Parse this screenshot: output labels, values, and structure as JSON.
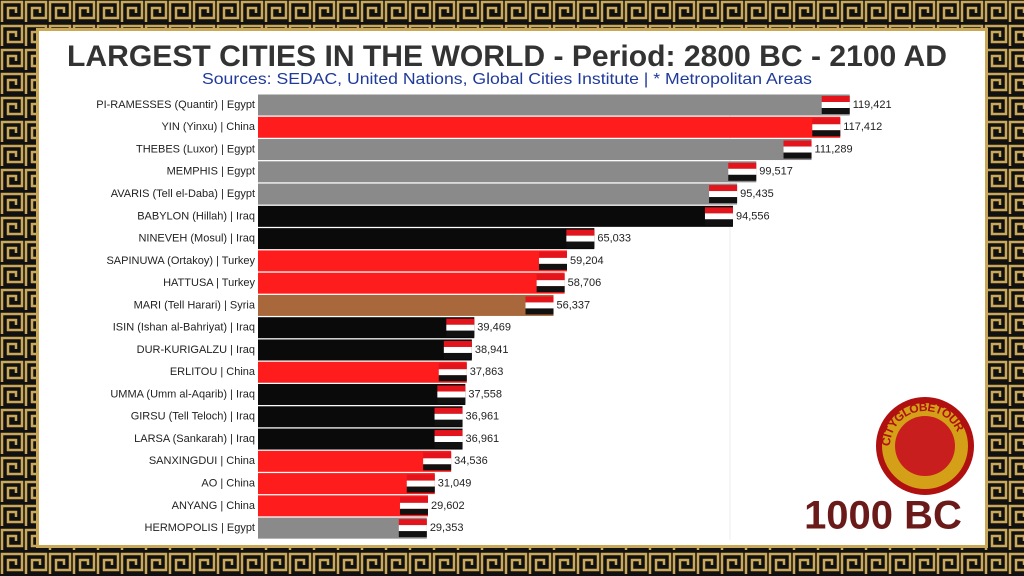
{
  "chart_data": {
    "type": "barh",
    "title": "LARGEST CITIES IN THE WORLD - Period: 2800 BC - 2100 AD",
    "subtitle": "Sources: SEDAC, United Nations, Global Cities Institute | * Metropolitan Areas",
    "period_label": "1000 BC",
    "logo": "CITYGLOBETOUR",
    "categories": [
      "PI-RAMESSES (Quantir) | Egypt",
      "YIN (Yinxu) | China",
      "THEBES (Luxor) | Egypt",
      "MEMPHIS | Egypt",
      "AVARIS (Tell el-Daba) | Egypt",
      "BABYLON (Hillah) | Iraq",
      "NINEVEH (Mosul) | Iraq",
      "SAPINUWA (Ortakoy) | Turkey",
      "HATTUSA | Turkey",
      "MARI (Tell Harari) | Syria",
      "ISIN (Ishan al-Bahriyat) | Iraq",
      "DUR-KURIGALZU | Iraq",
      "ERLITOU | China",
      "UMMA (Umm al-Aqarib) | Iraq",
      "GIRSU (Tell Teloch) | Iraq",
      "LARSA (Sankarah) | Iraq",
      "SANXINGDUI | China",
      "AO | China",
      "ANYANG | China",
      "HERMOPOLIS | Egypt"
    ],
    "values": [
      119421,
      117412,
      111289,
      99517,
      95435,
      94556,
      65033,
      59204,
      58706,
      56337,
      39469,
      38941,
      37863,
      37558,
      36961,
      36961,
      34536,
      31049,
      29602,
      29353
    ],
    "value_labels": [
      "119,421",
      "117,412",
      "111,289",
      "99,517",
      "95,435",
      "94,556",
      "65,033",
      "59,204",
      "58,706",
      "56,337",
      "39,469",
      "38,941",
      "37,863",
      "37,558",
      "36,961",
      "36,961",
      "34,536",
      "31,049",
      "29,602",
      "29,353"
    ],
    "colors": [
      "#8a8a8a",
      "#ff1c1c",
      "#8a8a8a",
      "#8a8a8a",
      "#8a8a8a",
      "#0a0a0a",
      "#0a0a0a",
      "#ff1c1c",
      "#ff1c1c",
      "#a8683c",
      "#0a0a0a",
      "#0a0a0a",
      "#ff1c1c",
      "#0a0a0a",
      "#0a0a0a",
      "#0a0a0a",
      "#ff1c1c",
      "#ff1c1c",
      "#ff1c1c",
      "#8a8a8a"
    ],
    "xlim": [
      -6600,
      128000
    ]
  }
}
